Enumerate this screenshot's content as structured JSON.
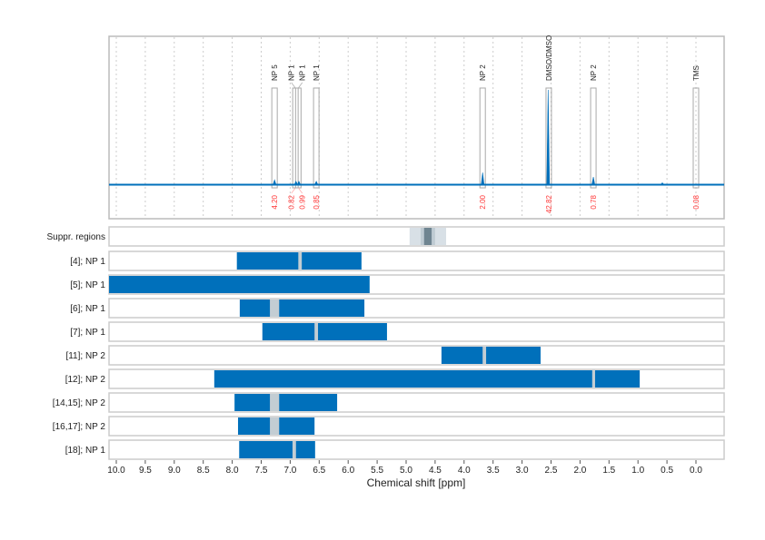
{
  "chart_data": {
    "type": "nmr-spectrum-with-range-bars",
    "xlabel": "Chemical shift [ppm]",
    "xlim": [
      10.125,
      -0.49
    ],
    "xticks": [
      "10.0",
      "9.5",
      "9.0",
      "8.5",
      "8.0",
      "7.5",
      "7.0",
      "6.5",
      "6.0",
      "5.5",
      "5.0",
      "4.5",
      "4.0",
      "3.5",
      "3.0",
      "2.5",
      "2.0",
      "1.5",
      "1.0",
      "0.5",
      "0.0"
    ],
    "grid": "vertical dotted",
    "colors": {
      "spectrum": "#0070bb",
      "bar": "#0070bb",
      "gap": "#c3cdd3",
      "integral": "#ff3333",
      "suppr_light": "#d8e0e6",
      "suppr_mid": "#bfcbd3",
      "suppr_dark": "#6f8591"
    },
    "peaks": [
      {
        "ppm": 7.27,
        "intensity": 0.03
      },
      {
        "ppm": 6.9,
        "intensity": 0.02
      },
      {
        "ppm": 6.85,
        "intensity": 0.02
      },
      {
        "ppm": 6.55,
        "intensity": 0.02
      },
      {
        "ppm": 3.68,
        "intensity": 0.08
      },
      {
        "ppm": 2.55,
        "intensity": 0.65
      },
      {
        "ppm": 1.77,
        "intensity": 0.05
      },
      {
        "ppm": 0.58,
        "intensity": 0.01
      }
    ],
    "annotations": [
      {
        "label": "NP 5",
        "ppm": 7.27,
        "integral": "4.20"
      },
      {
        "label": "NP 1",
        "ppm": 6.91,
        "integral": "0.82"
      },
      {
        "label": "NP 1",
        "ppm": 6.86,
        "integral": "0.99"
      },
      {
        "label": "NP 1",
        "ppm": 6.55,
        "integral": "0.85"
      },
      {
        "label": "NP 2",
        "ppm": 3.68,
        "integral": "2.00"
      },
      {
        "label": "DMSO/DMSO",
        "ppm": 2.54,
        "integral": "42.82"
      },
      {
        "label": "NP 2",
        "ppm": 1.77,
        "integral": "0.78"
      },
      {
        "label": "TMS",
        "ppm": 0.0,
        "integral": "0.08"
      }
    ],
    "suppressed": {
      "label": "Suppr. regions",
      "outer": [
        4.94,
        4.31
      ],
      "mid": [
        4.75,
        4.5
      ],
      "inner": [
        4.69,
        4.56
      ]
    },
    "rows": [
      {
        "label": "[4]; NP 1",
        "range": [
          7.92,
          5.77
        ],
        "gap": [
          6.86,
          6.8
        ]
      },
      {
        "label": "[5]; NP 1",
        "range": [
          10.125,
          5.63
        ],
        "gap": null
      },
      {
        "label": "[6]; NP 1",
        "range": [
          7.87,
          5.72
        ],
        "gap": [
          7.35,
          7.19
        ]
      },
      {
        "label": "[7]; NP 1",
        "range": [
          7.48,
          5.33
        ],
        "gap": [
          6.58,
          6.52
        ]
      },
      {
        "label": "[11]; NP 2",
        "range": [
          4.39,
          2.68
        ],
        "gap": [
          3.68,
          3.62
        ]
      },
      {
        "label": "[12]; NP 2",
        "range": [
          8.31,
          0.97
        ],
        "gap": [
          1.79,
          1.74
        ]
      },
      {
        "label": "[14,15]; NP 2",
        "range": [
          7.96,
          6.19
        ],
        "gap": [
          7.35,
          7.19
        ]
      },
      {
        "label": "[16,17]; NP 2",
        "range": [
          7.9,
          6.58
        ],
        "gap": [
          7.35,
          7.19
        ]
      },
      {
        "label": "[18]; NP 1",
        "range": [
          7.88,
          6.57
        ],
        "gap": [
          6.96,
          6.9
        ]
      }
    ]
  }
}
